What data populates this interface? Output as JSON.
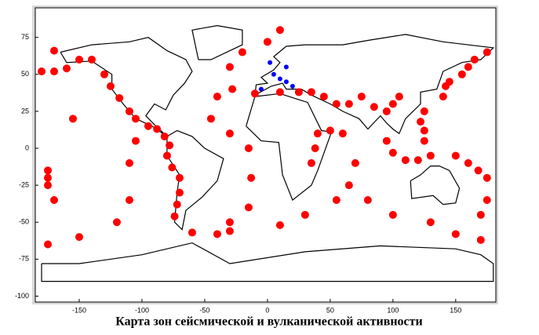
{
  "chart_data": {
    "type": "scatter",
    "caption": "Карта зон сейсмической и вулканической активности",
    "xlim": [
      -185,
      182
    ],
    "ylim": [
      -104,
      95
    ],
    "xticks": [
      -150,
      -100,
      -50,
      0,
      50,
      100,
      150
    ],
    "yticks": [
      75,
      50,
      25,
      0,
      -25,
      -50,
      -75,
      -100
    ],
    "series": [
      {
        "color": "#ff0000",
        "x": [
          -180,
          -170,
          -160,
          -150,
          -140,
          -130,
          -125,
          -118,
          -110,
          -105,
          -95,
          -88,
          -82,
          -78,
          -80,
          -76,
          -70,
          -70,
          -72,
          -74,
          -60,
          -40,
          -30,
          -30,
          -15,
          -13,
          -15,
          -30,
          -45,
          -40,
          -28,
          -30,
          -20,
          0,
          10,
          10,
          30,
          55,
          65,
          70,
          60,
          50,
          80,
          100,
          130,
          150,
          170,
          -175,
          -150,
          -120,
          -110,
          -110,
          -105,
          -10,
          10,
          25,
          35,
          45,
          55,
          65,
          75,
          85,
          95,
          100,
          105,
          95,
          100,
          110,
          120,
          130,
          125,
          125,
          122,
          125,
          140,
          142,
          145,
          155,
          160,
          165,
          150,
          160,
          168,
          175,
          -175,
          175,
          170,
          -155,
          35,
          38,
          40,
          175,
          -170,
          -175,
          -175,
          -170
        ],
        "y": [
          52,
          52,
          54,
          60,
          60,
          50,
          42,
          34,
          25,
          20,
          15,
          13,
          8,
          2,
          -5,
          -13,
          -20,
          -30,
          -38,
          -46,
          -57,
          -58,
          -56,
          -50,
          -40,
          -20,
          0,
          10,
          20,
          35,
          40,
          55,
          65,
          72,
          80,
          -52,
          -45,
          -35,
          -25,
          -10,
          10,
          12,
          -35,
          -45,
          -50,
          -58,
          -62,
          -65,
          -60,
          -50,
          -35,
          -10,
          5,
          37,
          38,
          38,
          38,
          35,
          30,
          30,
          35,
          28,
          25,
          30,
          35,
          5,
          -3,
          -8,
          -8,
          -5,
          5,
          12,
          18,
          25,
          35,
          42,
          45,
          50,
          55,
          60,
          -5,
          -10,
          -15,
          -20,
          -20,
          -35,
          -45,
          20,
          -10,
          0,
          10,
          65,
          66,
          -15,
          -25,
          -35
        ]
      },
      {
        "color": "#0000ff",
        "x": [
          5,
          10,
          15,
          -5,
          20,
          2,
          15
        ],
        "y": [
          50,
          47,
          45,
          40,
          42,
          58,
          55
        ]
      }
    ]
  }
}
